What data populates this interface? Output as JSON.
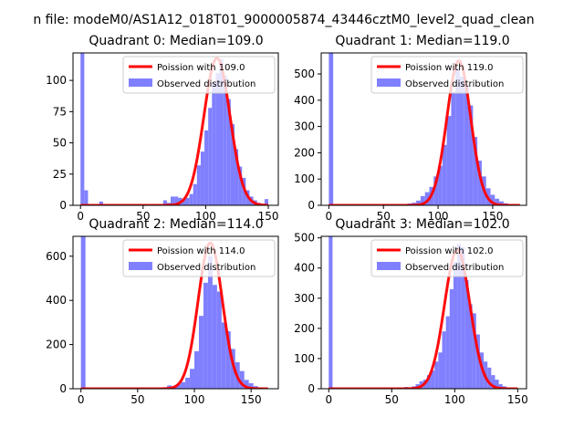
{
  "figure": {
    "suptitle": "n file: modeM0/AS1A12_018T01_9000005874_43446cztM0_level2_quad_clean"
  },
  "colors": {
    "hist": "#8080ff",
    "poisson": "#ff0000",
    "axis": "#000000"
  },
  "chart_data": [
    {
      "type": "bar+line",
      "title": "Quadrant 0: Median=109.0",
      "median": 109.0,
      "xlim": [
        -6,
        158
      ],
      "ylim": [
        0,
        122
      ],
      "xticks": [
        0,
        50,
        100,
        150
      ],
      "yticks": [
        0,
        25,
        50,
        75,
        100
      ],
      "hist_bin_width": 3,
      "hist": [
        [
          0,
          122
        ],
        [
          3,
          12
        ],
        [
          6,
          1
        ],
        [
          15,
          3
        ],
        [
          27,
          1
        ],
        [
          45,
          1
        ],
        [
          60,
          1
        ],
        [
          63,
          1
        ],
        [
          66,
          4
        ],
        [
          69,
          2
        ],
        [
          72,
          7
        ],
        [
          75,
          7
        ],
        [
          78,
          6
        ],
        [
          81,
          5
        ],
        [
          84,
          6
        ],
        [
          87,
          9
        ],
        [
          90,
          17
        ],
        [
          93,
          32
        ],
        [
          96,
          43
        ],
        [
          99,
          60
        ],
        [
          102,
          78
        ],
        [
          105,
          98
        ],
        [
          108,
          106
        ],
        [
          111,
          117
        ],
        [
          114,
          104
        ],
        [
          117,
          85
        ],
        [
          120,
          65
        ],
        [
          123,
          45
        ],
        [
          126,
          31
        ],
        [
          129,
          22
        ],
        [
          132,
          12
        ],
        [
          135,
          7
        ],
        [
          138,
          4
        ],
        [
          141,
          2
        ],
        [
          144,
          1
        ],
        [
          147,
          5
        ]
      ],
      "poisson": {
        "lambda": 109.0,
        "peak": 117.8,
        "xrange": [
          0,
          150
        ]
      },
      "legend": [
        {
          "label": "Poission with 109.0",
          "kind": "line"
        },
        {
          "label": "Observed distribution",
          "kind": "patch"
        }
      ]
    },
    {
      "type": "bar+line",
      "title": "Quadrant 1: Median=119.0",
      "median": 119.0,
      "xlim": [
        -7,
        181
      ],
      "ylim": [
        0,
        580
      ],
      "xticks": [
        0,
        50,
        100,
        150
      ],
      "yticks": [
        0,
        100,
        200,
        300,
        400,
        500
      ],
      "hist_bin_width": 4,
      "hist": [
        [
          0,
          580
        ],
        [
          56,
          3
        ],
        [
          64,
          4
        ],
        [
          72,
          7
        ],
        [
          76,
          10
        ],
        [
          80,
          18
        ],
        [
          84,
          35
        ],
        [
          88,
          50
        ],
        [
          92,
          70
        ],
        [
          96,
          110
        ],
        [
          100,
          150
        ],
        [
          104,
          230
        ],
        [
          108,
          340
        ],
        [
          112,
          430
        ],
        [
          116,
          520
        ],
        [
          120,
          490
        ],
        [
          124,
          460
        ],
        [
          128,
          380
        ],
        [
          132,
          260
        ],
        [
          136,
          170
        ],
        [
          140,
          110
        ],
        [
          144,
          65
        ],
        [
          148,
          40
        ],
        [
          152,
          25
        ],
        [
          156,
          15
        ],
        [
          160,
          8
        ],
        [
          164,
          4
        ],
        [
          168,
          2
        ]
      ],
      "poisson": {
        "lambda": 119.0,
        "peak": 550,
        "xrange": [
          0,
          175
        ]
      },
      "legend": [
        {
          "label": "Poission with 119.0",
          "kind": "line"
        },
        {
          "label": "Observed distribution",
          "kind": "patch"
        }
      ]
    },
    {
      "type": "bar+line",
      "title": "Quadrant 2: Median=114.0",
      "median": 114.0,
      "xlim": [
        -7,
        174
      ],
      "ylim": [
        0,
        690
      ],
      "xticks": [
        0,
        50,
        100,
        150
      ],
      "yticks": [
        0,
        200,
        400,
        600
      ],
      "hist_bin_width": 4,
      "hist": [
        [
          0,
          690
        ],
        [
          72,
          4
        ],
        [
          76,
          15
        ],
        [
          80,
          10
        ],
        [
          84,
          20
        ],
        [
          88,
          30
        ],
        [
          92,
          50
        ],
        [
          96,
          90
        ],
        [
          100,
          170
        ],
        [
          104,
          330
        ],
        [
          108,
          480
        ],
        [
          112,
          600
        ],
        [
          116,
          470
        ],
        [
          120,
          440
        ],
        [
          124,
          300
        ],
        [
          128,
          260
        ],
        [
          132,
          180
        ],
        [
          136,
          120
        ],
        [
          140,
          80
        ],
        [
          144,
          40
        ],
        [
          148,
          25
        ],
        [
          152,
          12
        ],
        [
          156,
          6
        ],
        [
          160,
          3
        ]
      ],
      "poisson": {
        "lambda": 114.0,
        "peak": 660,
        "xrange": [
          0,
          165
        ]
      },
      "legend": [
        {
          "label": "Poission with 114.0",
          "kind": "line"
        },
        {
          "label": "Observed distribution",
          "kind": "patch"
        }
      ]
    },
    {
      "type": "bar+line",
      "title": "Quadrant 3: Median=102.0",
      "median": 102.0,
      "xlim": [
        -6,
        157
      ],
      "ylim": [
        0,
        505
      ],
      "xticks": [
        0,
        50,
        100,
        150
      ],
      "yticks": [
        0,
        100,
        200,
        300,
        400,
        500
      ],
      "hist_bin_width": 3,
      "hist": [
        [
          0,
          505
        ],
        [
          42,
          2
        ],
        [
          54,
          4
        ],
        [
          60,
          6
        ],
        [
          66,
          8
        ],
        [
          69,
          15
        ],
        [
          72,
          25
        ],
        [
          75,
          30
        ],
        [
          78,
          45
        ],
        [
          81,
          60
        ],
        [
          84,
          90
        ],
        [
          87,
          120
        ],
        [
          90,
          190
        ],
        [
          93,
          240
        ],
        [
          96,
          330
        ],
        [
          99,
          420
        ],
        [
          102,
          480
        ],
        [
          105,
          470
        ],
        [
          108,
          360
        ],
        [
          111,
          280
        ],
        [
          114,
          250
        ],
        [
          117,
          180
        ],
        [
          120,
          120
        ],
        [
          123,
          90
        ],
        [
          126,
          70
        ],
        [
          129,
          45
        ],
        [
          132,
          30
        ],
        [
          135,
          15
        ],
        [
          138,
          8
        ],
        [
          141,
          4
        ],
        [
          144,
          2
        ]
      ],
      "poisson": {
        "lambda": 102.0,
        "peak": 460,
        "xrange": [
          0,
          150
        ]
      },
      "legend": [
        {
          "label": "Poission with 102.0",
          "kind": "line"
        },
        {
          "label": "Observed distribution",
          "kind": "patch"
        }
      ]
    }
  ]
}
